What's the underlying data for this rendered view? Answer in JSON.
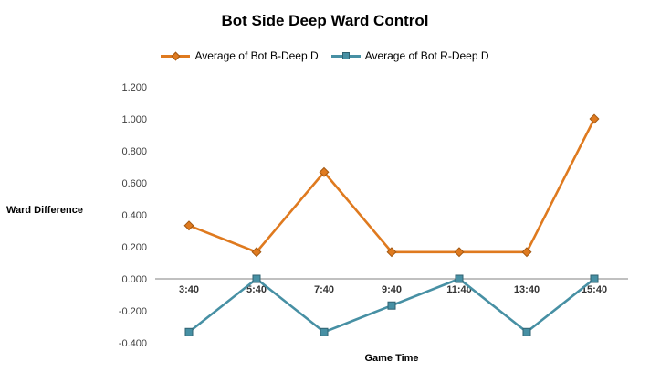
{
  "chart_data": {
    "type": "line",
    "title": "Bot Side Deep Ward Control",
    "xlabel": "Game Time",
    "ylabel": "Ward Difference",
    "categories": [
      "3:40",
      "5:40",
      "7:40",
      "9:40",
      "11:40",
      "13:40",
      "15:40"
    ],
    "series": [
      {
        "name": "Average of Bot B-Deep D",
        "color": "#DF7A1F",
        "marker_stroke": "#A35812",
        "marker": "diamond",
        "values": [
          0.333,
          0.167,
          0.667,
          0.167,
          0.167,
          0.167,
          1.0
        ]
      },
      {
        "name": "Average of Bot R-Deep D",
        "color": "#4790A4",
        "marker_stroke": "#2F6271",
        "marker": "square",
        "values": [
          -0.333,
          0.0,
          -0.333,
          -0.167,
          0.0,
          -0.333,
          0.0
        ]
      }
    ],
    "ylim": [
      -0.4,
      1.2
    ],
    "ytick_step": 0.2,
    "ytick_decimals": 3,
    "grid": false,
    "legend_position": "top",
    "axis_color": "#808080"
  }
}
